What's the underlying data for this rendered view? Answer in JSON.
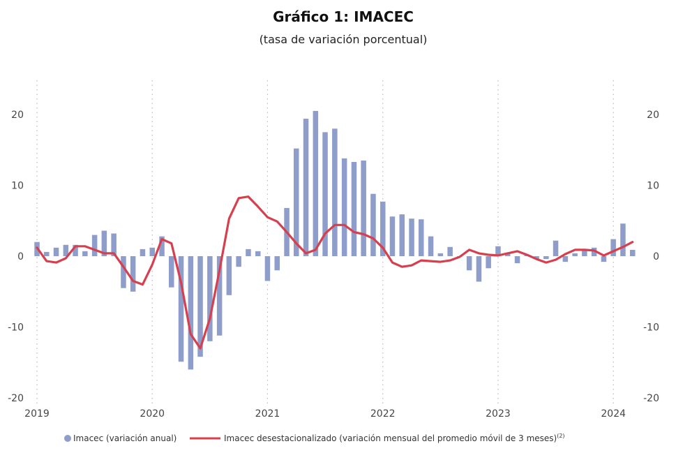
{
  "chart_data": {
    "type": "bar+line",
    "title": "Gráfico 1:  IMACEC",
    "subtitle": "(tasa de variación porcentual)",
    "xlabel": "",
    "ylabel": "",
    "ylim": [
      -20,
      25
    ],
    "y_ticks": [
      -20,
      -10,
      0,
      10,
      20
    ],
    "y_tick_labels": [
      "-20",
      "-10",
      "0",
      "10",
      "20"
    ],
    "x_start": "2019-01",
    "x_ticks": [
      {
        "label": "2019",
        "date": "2019-01"
      },
      {
        "label": "2020",
        "date": "2020-01"
      },
      {
        "label": "2021",
        "date": "2021-01"
      },
      {
        "label": "2022",
        "date": "2022-01"
      },
      {
        "label": "2023",
        "date": "2023-01"
      },
      {
        "label": "2024",
        "date": "2024-01"
      }
    ],
    "grid": "vertical dotted lines at year ticks",
    "legend_position": "bottom",
    "series": [
      {
        "name": "Imacec (variación anual)",
        "kind": "bar",
        "color": "#8e9dc9",
        "values": [
          2.0,
          0.6,
          1.2,
          1.6,
          1.6,
          0.7,
          3.0,
          3.6,
          3.2,
          -4.5,
          -5.0,
          1.0,
          1.2,
          2.8,
          -4.4,
          -14.9,
          -16.0,
          -14.2,
          -12.0,
          -11.2,
          -5.5,
          -1.5,
          1.0,
          0.7,
          -3.5,
          -2.0,
          6.8,
          15.2,
          19.4,
          20.5,
          17.5,
          18.0,
          13.8,
          13.3,
          13.5,
          8.8,
          7.7,
          5.6,
          5.9,
          5.3,
          5.2,
          2.8,
          0.4,
          1.3,
          0.0,
          -2.0,
          -3.6,
          -1.7,
          1.4,
          0.4,
          -1.0,
          0.2,
          -0.4,
          -0.4,
          2.2,
          -0.8,
          0.4,
          0.9,
          1.2,
          -0.8,
          2.4,
          4.6,
          0.9
        ],
        "value_labels": []
      },
      {
        "name": "Imacec desestacionalizado (variación mensual del promedio móvil de 3 meses)",
        "name_superscript": "(2)",
        "kind": "line",
        "color": "#d6404e",
        "values": [
          1.2,
          -0.7,
          -0.9,
          -0.3,
          1.4,
          1.4,
          0.9,
          0.4,
          0.4,
          -1.5,
          -3.5,
          -4.0,
          -1.2,
          2.4,
          1.8,
          -3.7,
          -11.0,
          -13.0,
          -8.8,
          -2.0,
          5.3,
          8.2,
          8.4,
          7.0,
          5.5,
          4.9,
          3.4,
          1.8,
          0.4,
          0.9,
          3.2,
          4.4,
          4.4,
          3.4,
          3.1,
          2.5,
          1.2,
          -0.9,
          -1.5,
          -1.3,
          -0.6,
          -0.7,
          -0.8,
          -0.6,
          -0.1,
          0.9,
          0.4,
          0.2,
          0.1,
          0.4,
          0.7,
          0.2,
          -0.4,
          -0.9,
          -0.5,
          0.3,
          0.9,
          0.9,
          0.8,
          0.1,
          0.7,
          1.3,
          2.0
        ],
        "value_labels": []
      }
    ]
  }
}
